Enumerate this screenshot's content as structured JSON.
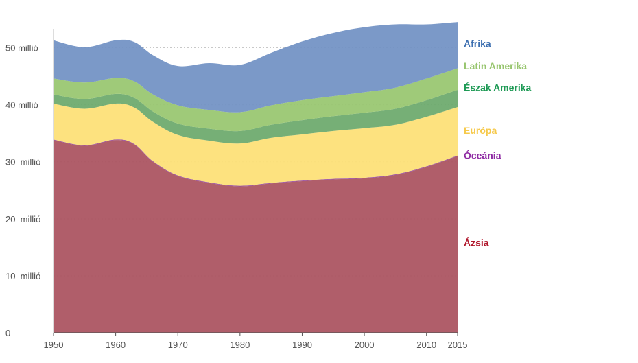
{
  "chart_data": {
    "type": "area",
    "stacked": true,
    "x": [
      1950,
      1955,
      1960,
      1963,
      1966,
      1970,
      1975,
      1980,
      1985,
      1990,
      1995,
      2000,
      2005,
      2010,
      2015
    ],
    "series": [
      {
        "name": "Ázsia",
        "color": "#a9505d",
        "values": [
          33.8,
          32.8,
          33.8,
          33.0,
          30.0,
          27.5,
          26.3,
          25.7,
          26.2,
          26.6,
          26.9,
          27.1,
          27.7,
          29.1,
          31.0
        ]
      },
      {
        "name": "Óceánia",
        "color": "#8e3d9a",
        "values": [
          0.1,
          0.1,
          0.1,
          0.1,
          0.1,
          0.1,
          0.1,
          0.1,
          0.1,
          0.1,
          0.1,
          0.1,
          0.1,
          0.1,
          0.1
        ]
      },
      {
        "name": "Európa",
        "color": "#fde074",
        "values": [
          6.3,
          6.4,
          6.3,
          6.4,
          6.9,
          7.1,
          7.3,
          7.4,
          7.9,
          8.1,
          8.4,
          8.7,
          8.7,
          8.7,
          8.5
        ]
      },
      {
        "name": "Észak Amerika",
        "color": "#6aa86a",
        "values": [
          1.6,
          1.7,
          1.7,
          1.7,
          1.8,
          2.0,
          2.1,
          2.2,
          2.3,
          2.5,
          2.6,
          2.7,
          2.8,
          2.9,
          3.0
        ]
      },
      {
        "name": "Latin Amerika",
        "color": "#97c56e",
        "values": [
          2.8,
          2.9,
          2.8,
          2.9,
          3.0,
          3.2,
          3.3,
          3.3,
          3.4,
          3.5,
          3.5,
          3.6,
          3.7,
          3.8,
          3.8
        ]
      },
      {
        "name": "Afrika",
        "color": "#7090c3",
        "values": [
          6.7,
          6.2,
          6.6,
          6.9,
          6.9,
          6.9,
          8.2,
          8.3,
          9.2,
          10.3,
          11.1,
          11.4,
          11.1,
          9.5,
          8.1
        ]
      }
    ],
    "xlim": [
      1950,
      2015
    ],
    "ylim": [
      0,
      55
    ],
    "x_ticks": [
      "1950",
      "1960",
      "1970",
      "1980",
      "1990",
      "2000",
      "2010",
      "2015"
    ],
    "y_ticks": [
      {
        "value": 0,
        "label": "0"
      },
      {
        "value": 10,
        "label": "10  millió"
      },
      {
        "value": 20,
        "label": "20  millió"
      },
      {
        "value": 30,
        "label": "30  millió"
      },
      {
        "value": 40,
        "label": "40 millió"
      },
      {
        "value": 50,
        "label": "50 millió"
      }
    ],
    "legend_labels": [
      {
        "text": "Afrika",
        "color": "#3d6fb0",
        "value": 50.7
      },
      {
        "text": "Latin Amerika",
        "color": "#97c56e",
        "value": 46.8
      },
      {
        "text": "Észak Amerika",
        "color": "#1e9a55",
        "value": 43.0
      },
      {
        "text": "Európa",
        "color": "#f6c94a",
        "value": 35.5
      },
      {
        "text": "Óceánia",
        "color": "#8e2aa3",
        "value": 31.1
      },
      {
        "text": "Ázsia",
        "color": "#b0152a",
        "value": 15.8
      }
    ],
    "legend_position": "right",
    "grid": "horizontal dotted",
    "title": "",
    "xlabel": "",
    "ylabel": ""
  }
}
